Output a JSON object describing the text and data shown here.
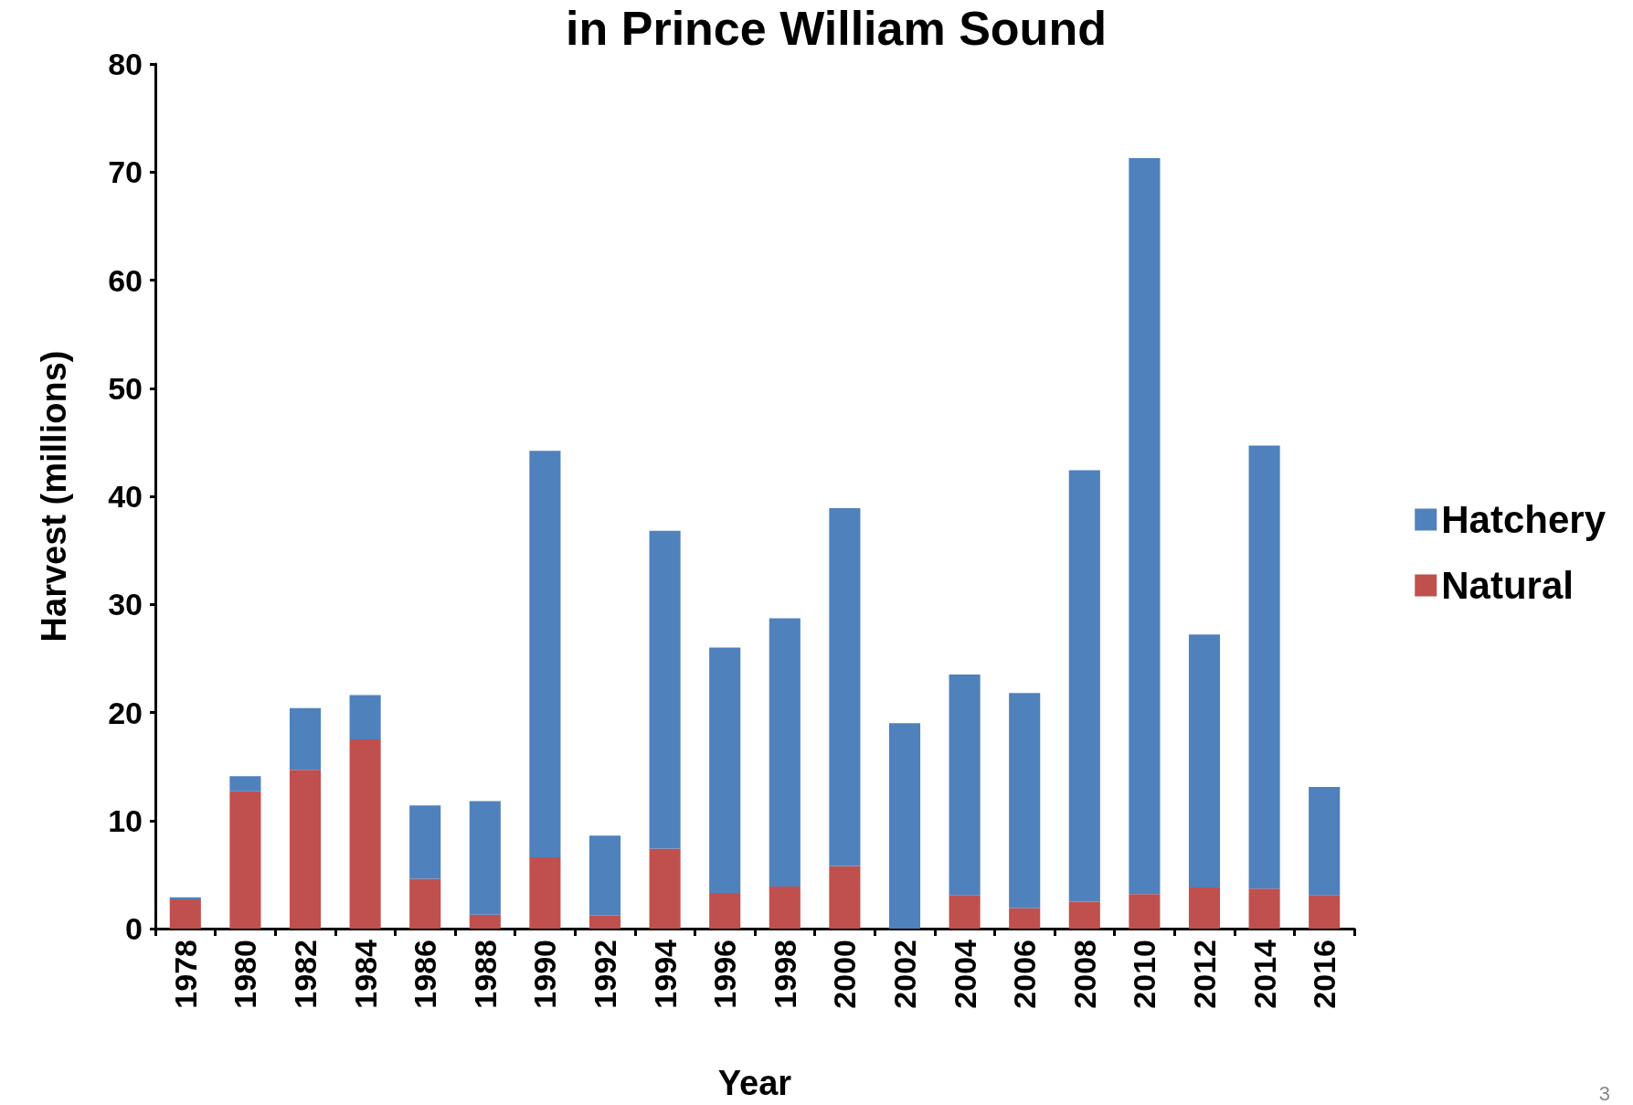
{
  "chart_data": {
    "type": "bar",
    "title": "in Prince William Sound",
    "xlabel": "Year",
    "ylabel": "Harvest (millions)",
    "categories": [
      "1978",
      "1980",
      "1982",
      "1984",
      "1986",
      "1988",
      "1990",
      "1992",
      "1994",
      "1996",
      "1998",
      "2000",
      "2002",
      "2004",
      "2006",
      "2008",
      "2010",
      "2012",
      "2014",
      "2016"
    ],
    "series": [
      {
        "name": "Natural",
        "color": "#c0504d",
        "values": [
          2.7,
          12.7,
          14.7,
          17.5,
          4.6,
          1.3,
          6.6,
          1.2,
          7.4,
          3.3,
          3.9,
          5.8,
          0,
          3.1,
          1.9,
          2.5,
          3.2,
          3.8,
          3.7,
          3.1
        ]
      },
      {
        "name": "Hatchery",
        "color": "#4f81bd",
        "values": [
          0.2,
          1.4,
          5.7,
          4.1,
          6.8,
          10.5,
          37.6,
          7.4,
          29.4,
          22.7,
          24.8,
          33.1,
          19.0,
          20.4,
          19.9,
          39.9,
          68.1,
          23.4,
          41.0,
          10.0
        ]
      }
    ],
    "stacked": true,
    "ylim": [
      0,
      80
    ],
    "yticks": [
      0,
      10,
      20,
      30,
      40,
      50,
      60,
      70,
      80
    ],
    "grid": false,
    "legend": "right",
    "annotations": [
      "3"
    ]
  }
}
